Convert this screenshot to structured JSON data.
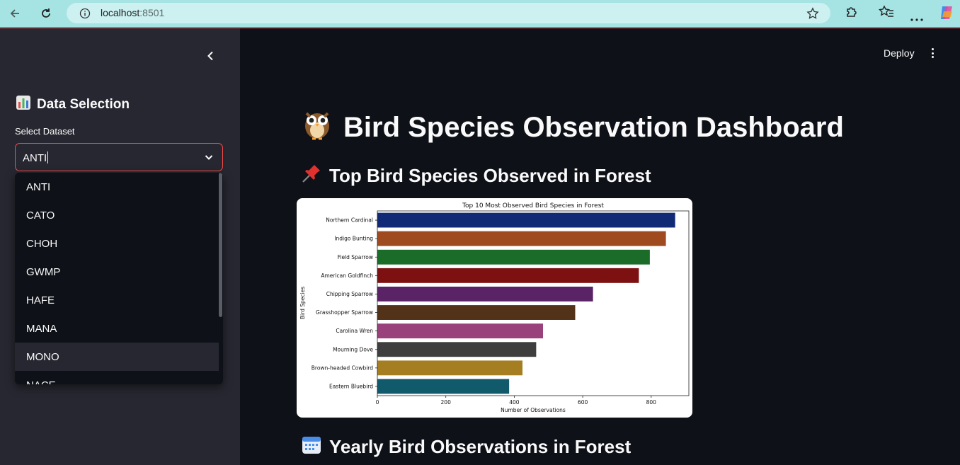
{
  "browser": {
    "url_host": "localhost",
    "url_port": ":8501"
  },
  "sidebar": {
    "heading": "Data Selection",
    "heading_icon": "bar-chart-emoji-icon",
    "select_label": "Select Dataset",
    "select_value": "ANTI",
    "options": [
      "ANTI",
      "CATO",
      "CHOH",
      "GWMP",
      "HAFE",
      "MANA",
      "MONO",
      "NACE"
    ],
    "highlighted_option": "MONO"
  },
  "header": {
    "deploy_label": "Deploy"
  },
  "main": {
    "title": "Bird Species Observation Dashboard",
    "title_icon": "owl-emoji-icon",
    "section1": "Top Bird Species Observed in Forest",
    "section1_icon": "pushpin-emoji-icon",
    "section2": "Yearly Bird Observations in Forest",
    "section2_icon": "calendar-emoji-icon"
  },
  "chart_data": {
    "type": "bar",
    "orientation": "horizontal",
    "title": "Top 10 Most Observed Bird Species in Forest",
    "xlabel": "Number of Observations",
    "ylabel": "Bird Species",
    "categories": [
      "Northern Cardinal",
      "Indigo Bunting",
      "Field Sparrow",
      "American Goldfinch",
      "Chipping Sparrow",
      "Grasshopper Sparrow",
      "Carolina Wren",
      "Mourning Dove",
      "Brown-headed Cowbird",
      "Eastern Bluebird"
    ],
    "values": [
      870,
      843,
      796,
      764,
      630,
      578,
      484,
      464,
      424,
      385
    ],
    "colors": [
      "#112a75",
      "#a04b1f",
      "#1b6b29",
      "#7d1111",
      "#5a2366",
      "#523219",
      "#98417b",
      "#3e3e3e",
      "#a57e22",
      "#105a6b"
    ],
    "xlim": [
      0,
      910
    ],
    "xticks": [
      0,
      200,
      400,
      600,
      800
    ],
    "grid": false
  }
}
